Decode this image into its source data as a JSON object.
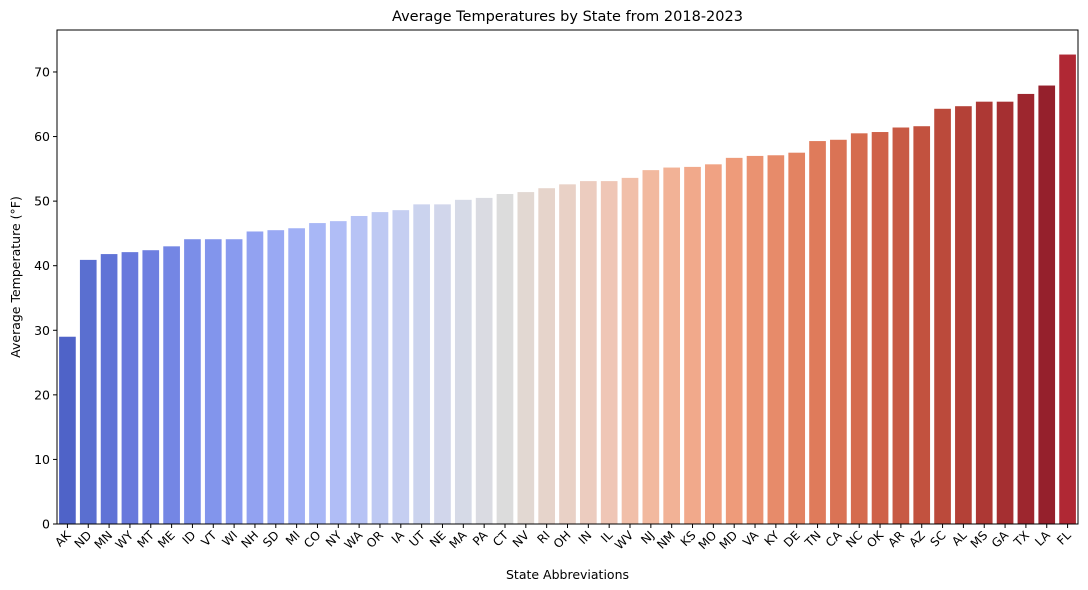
{
  "chart_data": {
    "type": "bar",
    "title": "Average Temperatures by State from 2018-2023",
    "xlabel": "State Abbreviations",
    "ylabel": "Average Temperature (°F)",
    "ylim": [
      0,
      76.5
    ],
    "yticks": [
      0,
      10,
      20,
      30,
      40,
      50,
      60,
      70
    ],
    "grid": false,
    "colormap": "coolwarm",
    "categories": [
      "AK",
      "ND",
      "MN",
      "WY",
      "MT",
      "ME",
      "ID",
      "VT",
      "WI",
      "NH",
      "SD",
      "MI",
      "CO",
      "NY",
      "WA",
      "OR",
      "IA",
      "UT",
      "NE",
      "MA",
      "PA",
      "CT",
      "NV",
      "RI",
      "OH",
      "IN",
      "IL",
      "WV",
      "NJ",
      "NM",
      "KS",
      "MO",
      "MD",
      "VA",
      "KY",
      "DE",
      "TN",
      "CA",
      "NC",
      "OK",
      "AR",
      "AZ",
      "SC",
      "AL",
      "MS",
      "GA",
      "TX",
      "LA",
      "FL"
    ],
    "values": [
      29.0,
      40.9,
      41.8,
      42.1,
      42.4,
      43.0,
      44.1,
      44.1,
      44.1,
      45.3,
      45.5,
      45.8,
      46.6,
      46.9,
      47.7,
      48.3,
      48.6,
      49.5,
      49.5,
      50.2,
      50.5,
      51.1,
      51.4,
      52.0,
      52.6,
      53.1,
      53.1,
      53.6,
      54.8,
      55.2,
      55.3,
      55.7,
      56.7,
      57.0,
      57.1,
      57.5,
      59.3,
      59.5,
      60.5,
      60.7,
      61.4,
      61.6,
      64.3,
      64.7,
      65.4,
      65.4,
      66.6,
      67.9,
      72.7
    ],
    "colors": [
      "#4f63c8",
      "#5a6fd0",
      "#6073d6",
      "#6879dc",
      "#6e7fe0",
      "#7486e4",
      "#7b8ee8",
      "#8295ec",
      "#899bef",
      "#92a2f1",
      "#99a9f3",
      "#a1b0f5",
      "#a8b7f6",
      "#b0bdf6",
      "#b7c3f5",
      "#bec9f3",
      "#c5cef1",
      "#cbd3ee",
      "#d1d6eb",
      "#d6dae7",
      "#dadbe2",
      "#dcdcdc",
      "#e2d8d2",
      "#e6d4cb",
      "#e9d1c6",
      "#ecccbf",
      "#efc6b6",
      "#f1bfa9",
      "#f2b99f",
      "#f2b296",
      "#f1a98b",
      "#f0a283",
      "#ee9b7a",
      "#ea9271",
      "#e78b6a",
      "#e38362",
      "#df7b5b",
      "#da7355",
      "#d56b4e",
      "#cf6249",
      "#c85a44",
      "#c2523f",
      "#bb4a3b",
      "#b44137",
      "#ad3834",
      "#a52f31",
      "#9d262e",
      "#95202c",
      "#b02834"
    ]
  }
}
